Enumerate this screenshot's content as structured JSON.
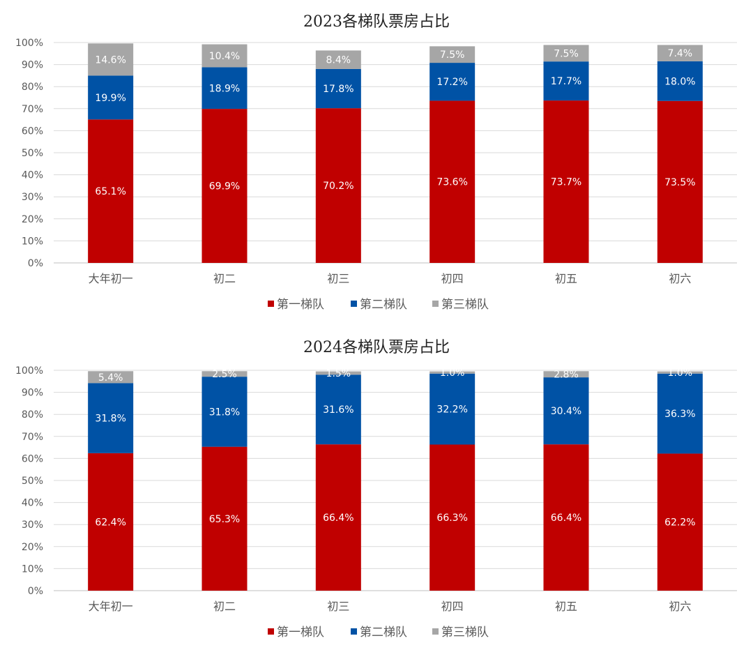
{
  "chart_data": [
    {
      "type": "bar",
      "stacked": true,
      "title": "2023各梯队票房占比",
      "categories": [
        "大年初一",
        "初二",
        "初三",
        "初四",
        "初五",
        "初六"
      ],
      "yticks": [
        "0%",
        "10%",
        "20%",
        "30%",
        "40%",
        "50%",
        "60%",
        "70%",
        "80%",
        "90%",
        "100%"
      ],
      "ylim": [
        0,
        100
      ],
      "grid": true,
      "legend_position": "bottom",
      "series": [
        {
          "name": "第一梯队",
          "color": "#C00000",
          "values": [
            65.1,
            69.9,
            70.2,
            73.6,
            73.7,
            73.5
          ],
          "labels": [
            "65.1%",
            "69.9%",
            "70.2%",
            "73.6%",
            "73.7%",
            "73.5%"
          ]
        },
        {
          "name": "第二梯队",
          "color": "#0052A5",
          "values": [
            19.9,
            18.9,
            17.8,
            17.2,
            17.7,
            18.0
          ],
          "labels": [
            "19.9%",
            "18.9%",
            "17.8%",
            "17.2%",
            "17.7%",
            "18.0%"
          ]
        },
        {
          "name": "第三梯队",
          "color": "#A6A6A6",
          "values": [
            14.6,
            10.4,
            8.4,
            7.5,
            7.5,
            7.4
          ],
          "labels": [
            "14.6%",
            "10.4%",
            "8.4%",
            "7.5%",
            "7.5%",
            "7.4%"
          ]
        }
      ]
    },
    {
      "type": "bar",
      "stacked": true,
      "title": "2024各梯队票房占比",
      "categories": [
        "大年初一",
        "初二",
        "初三",
        "初四",
        "初五",
        "初六"
      ],
      "yticks": [
        "0%",
        "10%",
        "20%",
        "30%",
        "40%",
        "50%",
        "60%",
        "70%",
        "80%",
        "90%",
        "100%"
      ],
      "ylim": [
        0,
        100
      ],
      "grid": true,
      "legend_position": "bottom",
      "series": [
        {
          "name": "第一梯队",
          "color": "#C00000",
          "values": [
            62.4,
            65.3,
            66.4,
            66.3,
            66.4,
            62.2
          ],
          "labels": [
            "62.4%",
            "65.3%",
            "66.4%",
            "66.3%",
            "66.4%",
            "62.2%"
          ]
        },
        {
          "name": "第二梯队",
          "color": "#0052A5",
          "values": [
            31.8,
            31.8,
            31.6,
            32.2,
            30.4,
            36.3
          ],
          "labels": [
            "31.8%",
            "31.8%",
            "31.6%",
            "32.2%",
            "30.4%",
            "36.3%"
          ]
        },
        {
          "name": "第三梯队",
          "color": "#A6A6A6",
          "values": [
            5.4,
            2.5,
            1.5,
            1.0,
            2.8,
            1.0
          ],
          "labels": [
            "5.4%",
            "2.5%",
            "1.5%",
            "1.0%",
            "2.8%",
            "1.0%"
          ]
        }
      ]
    }
  ]
}
